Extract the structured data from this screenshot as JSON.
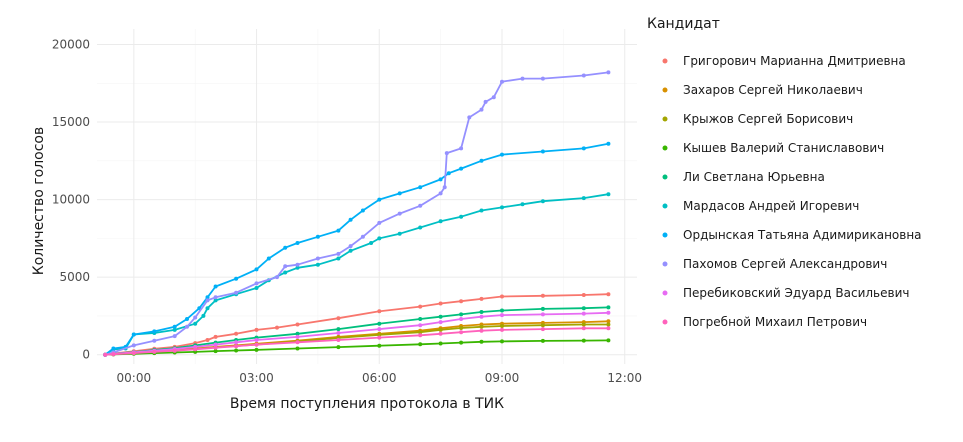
{
  "chart_data": {
    "type": "line",
    "xlabel": "Время поступления протокола в ТИК",
    "ylabel": "Количество голосов",
    "x_unit": "hours",
    "xlim": [
      -0.9,
      12.3
    ],
    "ylim": [
      -600,
      21000
    ],
    "x_ticks": [
      {
        "value": 0,
        "label": "00:00"
      },
      {
        "value": 3,
        "label": "03:00"
      },
      {
        "value": 6,
        "label": "06:00"
      },
      {
        "value": 9,
        "label": "09:00"
      },
      {
        "value": 12,
        "label": "12:00"
      }
    ],
    "y_ticks": [
      {
        "value": 0,
        "label": "0"
      },
      {
        "value": 5000,
        "label": "5000"
      },
      {
        "value": 10000,
        "label": "10000"
      },
      {
        "value": 15000,
        "label": "15000"
      },
      {
        "value": 20000,
        "label": "20000"
      }
    ],
    "grid": true,
    "legend": {
      "title": "Кандидат",
      "position": "right"
    },
    "series": [
      {
        "name": "Григорович Марианна Дмитриевна",
        "color": "#F8766D",
        "points": [
          [
            -0.7,
            0
          ],
          [
            -0.5,
            80
          ],
          [
            0,
            220
          ],
          [
            0.5,
            380
          ],
          [
            1,
            500
          ],
          [
            1.5,
            750
          ],
          [
            1.8,
            950
          ],
          [
            2,
            1150
          ],
          [
            2.5,
            1350
          ],
          [
            3,
            1600
          ],
          [
            3.5,
            1750
          ],
          [
            4,
            1950
          ],
          [
            5,
            2350
          ],
          [
            6,
            2800
          ],
          [
            7,
            3100
          ],
          [
            7.5,
            3300
          ],
          [
            8,
            3450
          ],
          [
            8.5,
            3600
          ],
          [
            9,
            3750
          ],
          [
            10,
            3800
          ],
          [
            11,
            3850
          ],
          [
            11.6,
            3900
          ]
        ]
      },
      {
        "name": "Захаров Сергей Николаевич",
        "color": "#D89000",
        "points": [
          [
            -0.7,
            0
          ],
          [
            -0.5,
            40
          ],
          [
            0,
            120
          ],
          [
            0.5,
            200
          ],
          [
            1,
            300
          ],
          [
            1.5,
            400
          ],
          [
            2,
            500
          ],
          [
            2.5,
            600
          ],
          [
            3,
            700
          ],
          [
            4,
            900
          ],
          [
            5,
            1150
          ],
          [
            6,
            1350
          ],
          [
            7,
            1550
          ],
          [
            7.5,
            1700
          ],
          [
            8,
            1850
          ],
          [
            8.5,
            1950
          ],
          [
            9,
            2000
          ],
          [
            10,
            2050
          ],
          [
            11,
            2100
          ],
          [
            11.6,
            2150
          ]
        ]
      },
      {
        "name": "Крыжов Сергей Борисович",
        "color": "#A3A500",
        "points": [
          [
            -0.7,
            0
          ],
          [
            -0.5,
            35
          ],
          [
            0,
            110
          ],
          [
            0.5,
            190
          ],
          [
            1,
            280
          ],
          [
            1.5,
            370
          ],
          [
            2,
            470
          ],
          [
            2.5,
            560
          ],
          [
            3,
            650
          ],
          [
            4,
            850
          ],
          [
            5,
            1080
          ],
          [
            6,
            1280
          ],
          [
            7,
            1450
          ],
          [
            7.5,
            1600
          ],
          [
            8,
            1720
          ],
          [
            8.5,
            1800
          ],
          [
            9,
            1850
          ],
          [
            10,
            1900
          ],
          [
            11,
            1950
          ],
          [
            11.6,
            1950
          ]
        ]
      },
      {
        "name": "Кышев Валерий Станиславович",
        "color": "#39B600",
        "points": [
          [
            -0.7,
            0
          ],
          [
            -0.5,
            20
          ],
          [
            0,
            60
          ],
          [
            0.5,
            100
          ],
          [
            1,
            140
          ],
          [
            1.5,
            180
          ],
          [
            2,
            230
          ],
          [
            2.5,
            270
          ],
          [
            3,
            310
          ],
          [
            4,
            400
          ],
          [
            5,
            490
          ],
          [
            6,
            580
          ],
          [
            7,
            670
          ],
          [
            7.5,
            720
          ],
          [
            8,
            780
          ],
          [
            8.5,
            830
          ],
          [
            9,
            860
          ],
          [
            10,
            890
          ],
          [
            11,
            910
          ],
          [
            11.6,
            920
          ]
        ]
      },
      {
        "name": "Ли Светлана Юрьевна",
        "color": "#00BF7D",
        "points": [
          [
            -0.7,
            0
          ],
          [
            -0.5,
            60
          ],
          [
            0,
            170
          ],
          [
            0.5,
            300
          ],
          [
            1,
            420
          ],
          [
            1.5,
            600
          ],
          [
            2,
            780
          ],
          [
            2.5,
            950
          ],
          [
            3,
            1100
          ],
          [
            4,
            1350
          ],
          [
            5,
            1650
          ],
          [
            6,
            2000
          ],
          [
            7,
            2300
          ],
          [
            7.5,
            2450
          ],
          [
            8,
            2600
          ],
          [
            8.5,
            2750
          ],
          [
            9,
            2850
          ],
          [
            10,
            2950
          ],
          [
            11,
            3000
          ],
          [
            11.6,
            3050
          ]
        ]
      },
      {
        "name": "Мардасов Андрей Игоревич",
        "color": "#00BFC4",
        "points": [
          [
            -0.7,
            0
          ],
          [
            -0.5,
            350
          ],
          [
            -0.2,
            400
          ],
          [
            0,
            1300
          ],
          [
            0.5,
            1400
          ],
          [
            1,
            1600
          ],
          [
            1.5,
            2000
          ],
          [
            1.7,
            2500
          ],
          [
            1.8,
            3000
          ],
          [
            2,
            3500
          ],
          [
            2.5,
            3900
          ],
          [
            3,
            4300
          ],
          [
            3.3,
            4800
          ],
          [
            3.7,
            5300
          ],
          [
            4,
            5600
          ],
          [
            4.5,
            5800
          ],
          [
            5,
            6200
          ],
          [
            5.3,
            6700
          ],
          [
            5.8,
            7200
          ],
          [
            6,
            7500
          ],
          [
            6.5,
            7800
          ],
          [
            7,
            8200
          ],
          [
            7.5,
            8600
          ],
          [
            8,
            8900
          ],
          [
            8.5,
            9300
          ],
          [
            9,
            9500
          ],
          [
            9.5,
            9700
          ],
          [
            10,
            9900
          ],
          [
            11,
            10100
          ],
          [
            11.6,
            10350
          ]
        ]
      },
      {
        "name": "Ордынская Татьяна Адимирикановна",
        "color": "#00B0F6",
        "points": [
          [
            -0.7,
            0
          ],
          [
            -0.5,
            400
          ],
          [
            -0.2,
            500
          ],
          [
            0,
            1300
          ],
          [
            0.5,
            1500
          ],
          [
            1,
            1800
          ],
          [
            1.3,
            2300
          ],
          [
            1.6,
            3000
          ],
          [
            1.8,
            3700
          ],
          [
            2,
            4400
          ],
          [
            2.5,
            4900
          ],
          [
            3,
            5500
          ],
          [
            3.3,
            6200
          ],
          [
            3.7,
            6900
          ],
          [
            4,
            7200
          ],
          [
            4.5,
            7600
          ],
          [
            5,
            8000
          ],
          [
            5.3,
            8700
          ],
          [
            5.6,
            9300
          ],
          [
            6,
            10000
          ],
          [
            6.5,
            10400
          ],
          [
            7,
            10800
          ],
          [
            7.5,
            11300
          ],
          [
            7.7,
            11700
          ],
          [
            8,
            12000
          ],
          [
            8.5,
            12500
          ],
          [
            9,
            12900
          ],
          [
            10,
            13100
          ],
          [
            11,
            13300
          ],
          [
            11.6,
            13600
          ]
        ]
      },
      {
        "name": "Пахомов Сергей Александрович",
        "color": "#9590FF",
        "points": [
          [
            -0.7,
            0
          ],
          [
            -0.5,
            150
          ],
          [
            0,
            600
          ],
          [
            0.5,
            900
          ],
          [
            1,
            1200
          ],
          [
            1.3,
            1800
          ],
          [
            1.5,
            2400
          ],
          [
            1.8,
            3500
          ],
          [
            2,
            3700
          ],
          [
            2.5,
            4000
          ],
          [
            3,
            4600
          ],
          [
            3.5,
            5000
          ],
          [
            3.7,
            5700
          ],
          [
            4,
            5800
          ],
          [
            4.5,
            6200
          ],
          [
            5,
            6500
          ],
          [
            5.3,
            7000
          ],
          [
            5.6,
            7600
          ],
          [
            6,
            8500
          ],
          [
            6.5,
            9100
          ],
          [
            7,
            9600
          ],
          [
            7.5,
            10400
          ],
          [
            7.6,
            10800
          ],
          [
            7.65,
            13000
          ],
          [
            8,
            13300
          ],
          [
            8.2,
            15300
          ],
          [
            8.5,
            15800
          ],
          [
            8.6,
            16300
          ],
          [
            8.8,
            16600
          ],
          [
            9,
            17600
          ],
          [
            9.5,
            17800
          ],
          [
            10,
            17800
          ],
          [
            11,
            18000
          ],
          [
            11.6,
            18200
          ]
        ]
      },
      {
        "name": "Перебиковский Эдуард Васильевич",
        "color": "#E76BF3",
        "points": [
          [
            -0.7,
            0
          ],
          [
            -0.5,
            50
          ],
          [
            0,
            150
          ],
          [
            0.5,
            260
          ],
          [
            1,
            370
          ],
          [
            1.5,
            500
          ],
          [
            2,
            650
          ],
          [
            2.5,
            800
          ],
          [
            3,
            950
          ],
          [
            4,
            1150
          ],
          [
            5,
            1400
          ],
          [
            6,
            1650
          ],
          [
            7,
            1900
          ],
          [
            7.5,
            2100
          ],
          [
            8,
            2300
          ],
          [
            8.5,
            2450
          ],
          [
            9,
            2550
          ],
          [
            10,
            2600
          ],
          [
            11,
            2650
          ],
          [
            11.6,
            2700
          ]
        ]
      },
      {
        "name": "Погребной Михаил Петрович",
        "color": "#FF62BC",
        "points": [
          [
            -0.7,
            0
          ],
          [
            -0.5,
            30
          ],
          [
            0,
            100
          ],
          [
            0.5,
            180
          ],
          [
            1,
            260
          ],
          [
            1.5,
            350
          ],
          [
            2,
            450
          ],
          [
            2.5,
            550
          ],
          [
            3,
            650
          ],
          [
            4,
            800
          ],
          [
            5,
            950
          ],
          [
            6,
            1100
          ],
          [
            7,
            1250
          ],
          [
            7.5,
            1350
          ],
          [
            8,
            1450
          ],
          [
            8.5,
            1550
          ],
          [
            9,
            1600
          ],
          [
            10,
            1650
          ],
          [
            11,
            1700
          ],
          [
            11.6,
            1700
          ]
        ]
      }
    ]
  }
}
